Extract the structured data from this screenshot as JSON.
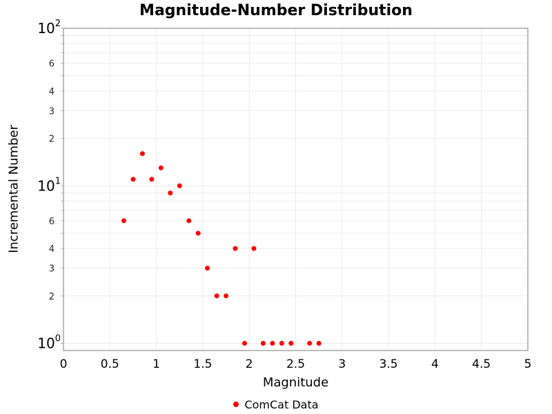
{
  "chart_data": {
    "type": "scatter",
    "title": "Magnitude-Number Distribution",
    "xlabel": "Magnitude",
    "ylabel": "Incremental Number",
    "grid": true,
    "legend_position": "bottom-center",
    "series": [
      {
        "name": "ComCat Data",
        "color": "#ff0000",
        "x": [
          0.65,
          0.75,
          0.85,
          0.95,
          1.05,
          1.15,
          1.25,
          1.35,
          1.45,
          1.55,
          1.65,
          1.75,
          1.85,
          1.95,
          2.05,
          2.15,
          2.25,
          2.35,
          2.45,
          2.65,
          2.75
        ],
        "y": [
          6,
          11,
          16,
          11,
          13,
          9,
          10,
          6,
          5,
          3,
          2,
          2,
          4,
          1,
          4,
          1,
          1,
          1,
          1,
          1,
          1
        ]
      }
    ],
    "x_axis": {
      "min": 0,
      "max": 5,
      "tick_values": [
        0,
        0.5,
        1,
        1.5,
        2,
        2.5,
        3,
        3.5,
        4,
        4.5,
        5
      ],
      "tick_labels": [
        "0",
        "0.5",
        "1",
        "1.5",
        "2",
        "2.5",
        "3",
        "3.5",
        "4",
        "4.5",
        "5"
      ]
    },
    "y_axis": {
      "scale": "log",
      "min": 0.9,
      "max": 100,
      "major_tick_exponents": [
        0,
        1,
        2
      ],
      "major_tick_base": "10",
      "minor_label_mantissas": [
        2,
        3,
        4,
        6
      ],
      "minor_grid_mantissas": [
        2,
        3,
        4,
        5,
        6,
        7,
        8,
        9
      ]
    },
    "colors": {
      "marker": "#ff0000",
      "grid": "#ececec",
      "border": "#a6a6a6",
      "tick_text": "#000000",
      "minor_tick_text": "#262626"
    }
  }
}
